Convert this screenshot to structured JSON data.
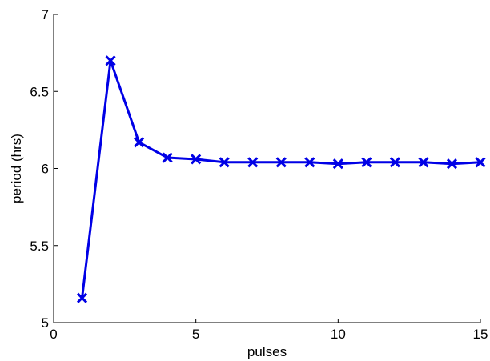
{
  "chart_data": {
    "type": "line",
    "title": "",
    "xlabel": "pulses",
    "ylabel": "period (hrs)",
    "xlim": [
      0,
      15
    ],
    "ylim": [
      5,
      7
    ],
    "xticks": [
      0,
      5,
      10,
      15
    ],
    "yticks": [
      5,
      5.5,
      6,
      6.5,
      7
    ],
    "xtick_labels": [
      "0",
      "5",
      "10",
      "15"
    ],
    "ytick_labels": [
      "5",
      "5.5",
      "6",
      "6.5",
      "7"
    ],
    "grid": false,
    "legend": "none",
    "series": [
      {
        "color": "#0000e6",
        "marker": "x",
        "x": [
          1,
          2,
          3,
          4,
          5,
          6,
          7,
          8,
          9,
          10,
          11,
          12,
          13,
          14,
          15
        ],
        "y": [
          5.16,
          6.7,
          6.17,
          6.07,
          6.06,
          6.04,
          6.04,
          6.04,
          6.04,
          6.03,
          6.04,
          6.04,
          6.04,
          6.03,
          6.04
        ]
      }
    ]
  }
}
